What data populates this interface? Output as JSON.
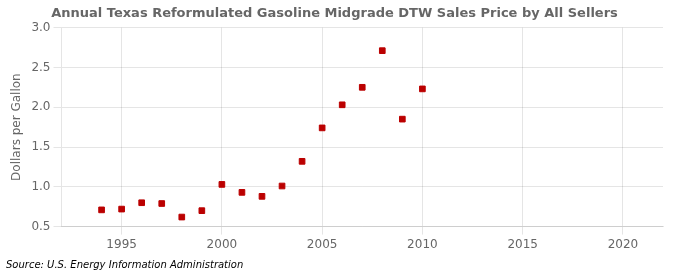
{
  "chart_data": {
    "type": "scatter",
    "title": "Annual Texas Reformulated Gasoline Midgrade DTW Sales Price by All Sellers",
    "ylabel": "Dollars per Gallon",
    "annotation": "Source: U.S. Energy Information Administration",
    "x": [
      1994,
      1995,
      1996,
      1997,
      1998,
      1999,
      2000,
      2001,
      2002,
      2003,
      2004,
      2005,
      2006,
      2007,
      2008,
      2009,
      2010
    ],
    "values": [
      0.71,
      0.72,
      0.8,
      0.79,
      0.62,
      0.7,
      1.03,
      0.93,
      0.88,
      1.01,
      1.32,
      1.74,
      2.03,
      2.25,
      2.71,
      1.85,
      2.23
    ],
    "color": "#bb0000",
    "marker": "square",
    "xlim": [
      1992,
      2022
    ],
    "ylim": [
      0.5,
      3.0
    ],
    "xticks": [
      1995,
      2000,
      2005,
      2010,
      2015,
      2020
    ],
    "yticks": [
      0.5,
      {
        "value": 1.0,
        "label": "1.0"
      },
      1.5,
      {
        "value": 2.0,
        "label": "2.0"
      },
      2.5,
      {
        "value": 3.0,
        "label": "3.0"
      }
    ],
    "grid": true
  }
}
